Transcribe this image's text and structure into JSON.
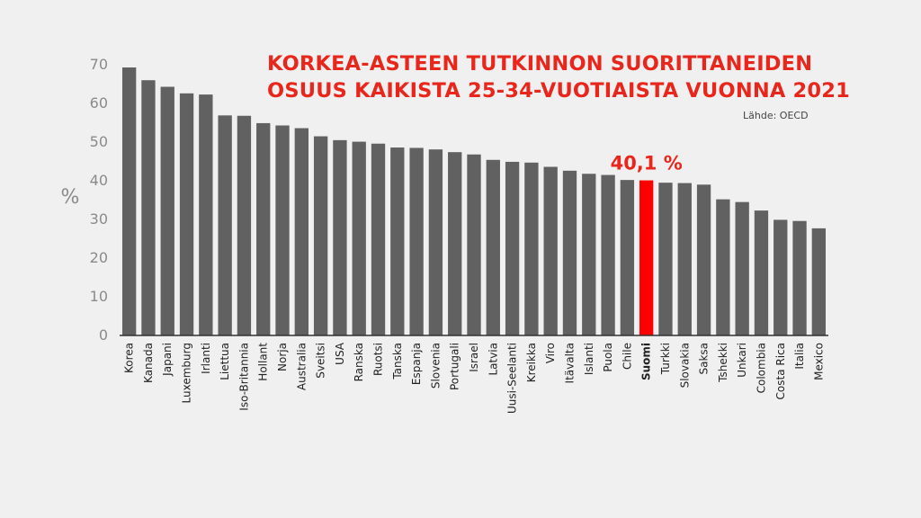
{
  "header": {
    "title_line1": "KORKEA-ASTEEN TUTKINNON SUORITTANEIDEN",
    "title_line2": "OSUUS KAIKISTA 25-34-VUOTIAISTA VUONNA 2021",
    "source": "Lähde: OECD"
  },
  "chart_data": {
    "type": "bar",
    "title": "KORKEA-ASTEEN TUTKINNON SUORITTANEIDEN OSUUS KAIKISTA 25-34-VUOTIAISTA VUONNA 2021",
    "xlabel": "",
    "ylabel": "%",
    "ylim": [
      0,
      70
    ],
    "yticks": [
      0,
      10,
      20,
      30,
      40,
      50,
      60,
      70
    ],
    "grid": false,
    "categories": [
      "Korea",
      "Kanada",
      "Japani",
      "Luxemburg",
      "Irlanti",
      "Liettua",
      "Iso-Britannia",
      "Hollant",
      "Norja",
      "Australia",
      "Sveitsi",
      "USA",
      "Ranska",
      "Ruotsi",
      "Tanska",
      "Espanja",
      "Slovenia",
      "Portugali",
      "Israel",
      "Latvia",
      "Uusi-Seelanti",
      "Kreikka",
      "Viro",
      "Itävalta",
      "Islanti",
      "Puola",
      "Chile",
      "Suomi",
      "Turkki",
      "Slovakia",
      "Saksa",
      "Tshekki",
      "Unkari",
      "Colombia",
      "Costa Rica",
      "Italia",
      "Mexico"
    ],
    "values": [
      69.3,
      66.0,
      64.3,
      62.6,
      62.3,
      56.9,
      56.8,
      54.9,
      54.3,
      53.6,
      51.5,
      50.5,
      50.1,
      49.6,
      48.6,
      48.5,
      48.1,
      47.4,
      46.8,
      45.4,
      44.9,
      44.7,
      43.6,
      42.6,
      41.8,
      41.5,
      40.2,
      40.1,
      39.5,
      39.4,
      39.0,
      35.2,
      34.5,
      32.3,
      29.9,
      29.6,
      27.7
    ],
    "highlight": {
      "category": "Suomi",
      "label": "40,1 %"
    },
    "colors": {
      "bar": "#616161",
      "highlight": "#ff0000",
      "axis": "#333333",
      "tick_text": "#8a8a8a",
      "label_text": "#222222",
      "title": "#e8261c"
    }
  }
}
